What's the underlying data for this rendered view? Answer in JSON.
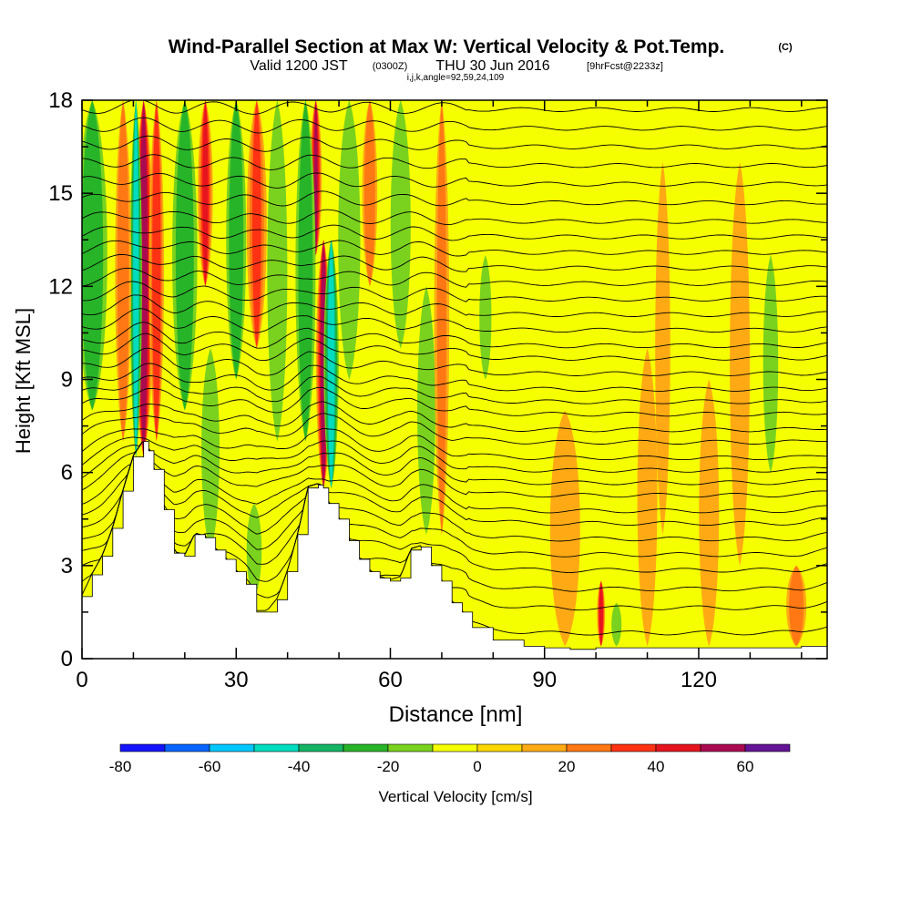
{
  "header": {
    "title": "Wind-Parallel Section at Max W: Vertical Velocity & Pot.Temp.",
    "copyright": "(C)",
    "valid_prefix": "Valid 1200 JST",
    "valid_utc": "(0300Z)",
    "valid_date": "THU 30 Jun 2016",
    "forecast": "[9hrFcst@2233z]",
    "indices": "i,j,k,angle=92,59,24,109"
  },
  "chart_data": {
    "type": "heatmap",
    "title": "Wind-Parallel Section at Max W: Vertical Velocity & Pot.Temp.",
    "xlabel": "Distance [nm]",
    "ylabel": "Height [Kft MSL]",
    "xlim": [
      0,
      145
    ],
    "ylim": [
      0,
      18
    ],
    "x_ticks": [
      0,
      30,
      60,
      90,
      120
    ],
    "y_ticks": [
      0,
      3,
      6,
      9,
      12,
      15,
      18
    ],
    "x_tick_labels": [
      "0",
      "30",
      "60",
      "90",
      "120"
    ],
    "y_tick_labels": [
      "0",
      "3",
      "6",
      "9",
      "12",
      "15",
      "18"
    ],
    "colorbar": {
      "label": "Vertical Velocity [cm/s]",
      "bounds": [
        -80,
        -70,
        -60,
        -50,
        -40,
        -30,
        -20,
        -10,
        0,
        10,
        20,
        30,
        40,
        50,
        60,
        70
      ],
      "colors": [
        "#1414ff",
        "#0a64ff",
        "#00c8ff",
        "#00dcbe",
        "#14b464",
        "#28b428",
        "#7ad21e",
        "#f5ff00",
        "#ffd700",
        "#ffaa14",
        "#ff7814",
        "#ff3214",
        "#e6141e",
        "#aa0a50",
        "#641496"
      ],
      "tick_values": [
        -80,
        -60,
        -40,
        -20,
        0,
        20,
        40,
        60
      ],
      "tick_labels": [
        "-80",
        "-60",
        "-40",
        "-20",
        "0",
        "20",
        "40",
        "60"
      ]
    },
    "terrain": {
      "x": [
        0,
        2,
        4,
        6,
        8,
        10,
        12,
        13,
        14,
        16,
        18,
        20,
        22,
        24,
        26,
        28,
        30,
        32,
        34,
        36,
        38,
        40,
        42,
        44,
        46,
        47,
        48,
        50,
        52,
        54,
        56,
        58,
        60,
        62,
        64,
        66,
        68,
        70,
        72,
        74,
        76,
        80,
        86,
        90,
        95,
        100,
        110,
        120,
        130,
        140,
        145
      ],
      "height": [
        2.0,
        2.7,
        3.3,
        4.2,
        5.4,
        6.5,
        7.0,
        6.7,
        6.1,
        4.8,
        3.4,
        3.3,
        4.0,
        3.9,
        3.5,
        3.2,
        2.8,
        2.4,
        1.5,
        1.5,
        1.9,
        2.8,
        4.0,
        5.5,
        5.6,
        5.5,
        5.0,
        4.5,
        3.8,
        3.2,
        2.8,
        2.6,
        2.5,
        2.6,
        3.5,
        3.6,
        3.0,
        2.5,
        1.8,
        1.5,
        1.0,
        0.6,
        0.4,
        0.35,
        0.3,
        0.35,
        0.35,
        0.35,
        0.35,
        0.4,
        0.9
      ]
    },
    "velocity_features": [
      {
        "x": 12.0,
        "y_range": [
          6.5,
          18
        ],
        "width": 2.0,
        "value": 55
      },
      {
        "x": 10.5,
        "y_range": [
          6.5,
          18
        ],
        "width": 1.2,
        "value": -45
      },
      {
        "x": 2.0,
        "y_range": [
          8,
          18
        ],
        "width": 3.0,
        "value": -25
      },
      {
        "x": 8.0,
        "y_range": [
          7,
          18
        ],
        "width": 1.6,
        "value": 25
      },
      {
        "x": 14.5,
        "y_range": [
          7,
          18
        ],
        "width": 1.5,
        "value": 35
      },
      {
        "x": 20.0,
        "y_range": [
          8,
          18
        ],
        "width": 2.5,
        "value": -25
      },
      {
        "x": 24.0,
        "y_range": [
          12,
          18
        ],
        "width": 1.5,
        "value": 40
      },
      {
        "x": 25.0,
        "y_range": [
          3.5,
          10
        ],
        "width": 1.8,
        "value": -20
      },
      {
        "x": 30.0,
        "y_range": [
          9,
          18
        ],
        "width": 2.0,
        "value": -25
      },
      {
        "x": 34.0,
        "y_range": [
          10,
          18
        ],
        "width": 2.0,
        "value": 30
      },
      {
        "x": 38.0,
        "y_range": [
          7,
          18
        ],
        "width": 2.0,
        "value": -20
      },
      {
        "x": 33.5,
        "y_range": [
          2,
          5
        ],
        "width": 1.5,
        "value": -20
      },
      {
        "x": 47.0,
        "y_range": [
          5.5,
          13.5
        ],
        "width": 1.5,
        "value": 55
      },
      {
        "x": 48.5,
        "y_range": [
          5.5,
          13.5
        ],
        "width": 1.5,
        "value": -50
      },
      {
        "x": 45.5,
        "y_range": [
          13,
          18
        ],
        "width": 1.2,
        "value": 50
      },
      {
        "x": 43.5,
        "y_range": [
          7,
          18
        ],
        "width": 2.0,
        "value": -25
      },
      {
        "x": 52.0,
        "y_range": [
          9,
          18
        ],
        "width": 2.2,
        "value": -20
      },
      {
        "x": 56.0,
        "y_range": [
          12,
          18
        ],
        "width": 1.5,
        "value": 25
      },
      {
        "x": 62.0,
        "y_range": [
          10,
          18
        ],
        "width": 2.0,
        "value": -20
      },
      {
        "x": 67.0,
        "y_range": [
          4,
          12
        ],
        "width": 1.8,
        "value": -20
      },
      {
        "x": 70.0,
        "y_range": [
          4,
          18
        ],
        "width": 1.5,
        "value": 20
      },
      {
        "x": 78.5,
        "y_range": [
          9,
          13
        ],
        "width": 1.2,
        "value": -15
      },
      {
        "x": 101.0,
        "y_range": [
          0.4,
          2.5
        ],
        "width": 0.8,
        "value": 45
      },
      {
        "x": 104.0,
        "y_range": [
          0.4,
          1.8
        ],
        "width": 1.0,
        "value": -15
      },
      {
        "x": 113.0,
        "y_range": [
          4,
          16
        ],
        "width": 1.5,
        "value": 15
      },
      {
        "x": 128.0,
        "y_range": [
          3,
          16
        ],
        "width": 2.0,
        "value": 15
      },
      {
        "x": 134.0,
        "y_range": [
          6,
          13
        ],
        "width": 1.5,
        "value": -15
      },
      {
        "x": 139.0,
        "y_range": [
          0.4,
          3
        ],
        "width": 2.0,
        "value": 25
      },
      {
        "x": 94.0,
        "y_range": [
          0.4,
          8
        ],
        "width": 3.0,
        "value": 12
      },
      {
        "x": 110.0,
        "y_range": [
          0.4,
          10
        ],
        "width": 2.0,
        "value": 12
      },
      {
        "x": 122.0,
        "y_range": [
          0.4,
          9
        ],
        "width": 2.0,
        "value": 12
      }
    ],
    "theta_contour_levels_kft": [
      0.9,
      1.7,
      2.3,
      2.9,
      3.4,
      3.9,
      4.4,
      4.8,
      5.3,
      5.7,
      6.1,
      6.5,
      7.0,
      7.4,
      7.9,
      8.3,
      8.7,
      9.2,
      9.7,
      10.1,
      10.6,
      11.1,
      11.6,
      12.1,
      12.6,
      13.1,
      13.6,
      14.1,
      14.7,
      15.3,
      15.9,
      16.5,
      17.1,
      17.7
    ]
  }
}
